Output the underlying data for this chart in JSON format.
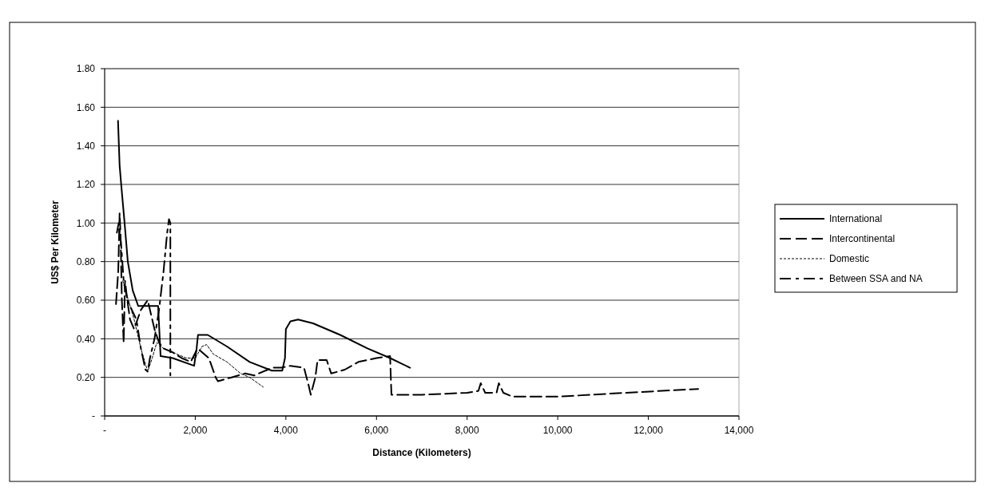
{
  "chart_data": {
    "type": "line",
    "xlabel": "Distance (Kilometers)",
    "ylabel": "US$ Per Kilometer",
    "xlim": [
      0,
      14000
    ],
    "xticks": [
      {
        "value": 0,
        "label": "-"
      },
      {
        "value": 2000,
        "label": "2,000"
      },
      {
        "value": 4000,
        "label": "4,000"
      },
      {
        "value": 6000,
        "label": "6,000"
      },
      {
        "value": 8000,
        "label": "8,000"
      },
      {
        "value": 10000,
        "label": "10,000"
      },
      {
        "value": 12000,
        "label": "12,000"
      },
      {
        "value": 14000,
        "label": "14,000"
      }
    ],
    "ylim": [
      0,
      1.8
    ],
    "yticks": [
      {
        "value": 0,
        "label": "-"
      },
      {
        "value": 0.2,
        "label": "0.20"
      },
      {
        "value": 0.4,
        "label": "0.40"
      },
      {
        "value": 0.6,
        "label": "0.60"
      },
      {
        "value": 0.8,
        "label": "0.80"
      },
      {
        "value": 1.0,
        "label": "1.00"
      },
      {
        "value": 1.2,
        "label": "1.20"
      },
      {
        "value": 1.4,
        "label": "1.40"
      },
      {
        "value": 1.6,
        "label": "1.60"
      },
      {
        "value": 1.8,
        "label": "1.80"
      }
    ],
    "grid": "y",
    "legend": "right",
    "series": [
      {
        "name": "International",
        "color": "#000000",
        "line_style": "solid",
        "x": [
          295,
          330,
          365,
          440,
          511,
          620,
          741,
          900,
          1180,
          1235,
          1500,
          1975,
          2030,
          2060,
          2275,
          2700,
          3200,
          3690,
          3920,
          3980,
          4000,
          4100,
          4270,
          4600,
          5200,
          5800,
          6300,
          6740
        ],
        "values": [
          1.53,
          1.3,
          1.2,
          1.0,
          0.8,
          0.65,
          0.57,
          0.57,
          0.57,
          0.31,
          0.3,
          0.26,
          0.35,
          0.42,
          0.42,
          0.36,
          0.28,
          0.235,
          0.235,
          0.3,
          0.45,
          0.49,
          0.5,
          0.48,
          0.42,
          0.35,
          0.3,
          0.25
        ]
      },
      {
        "name": "Intercontinental",
        "color": "#000000",
        "line_style": "dashed",
        "x": [
          250,
          300,
          330,
          350,
          380,
          420,
          450,
          500,
          560,
          650,
          800,
          950,
          1100,
          1200,
          1300,
          1500,
          1700,
          1900,
          2050,
          2300,
          2450,
          2500,
          2800,
          3100,
          3300,
          3700,
          3900,
          4100,
          4400,
          4500,
          4550,
          4650,
          4700,
          4900,
          5000,
          5300,
          5600,
          6000,
          6300,
          6330,
          7000,
          8000,
          8250,
          8300,
          8400,
          8650,
          8700,
          8800,
          9000,
          10000,
          11500,
          13100
        ],
        "values": [
          0.58,
          0.75,
          1.05,
          0.95,
          0.6,
          0.38,
          0.7,
          0.6,
          0.5,
          0.45,
          0.55,
          0.6,
          0.45,
          0.38,
          0.35,
          0.33,
          0.3,
          0.28,
          0.35,
          0.3,
          0.2,
          0.18,
          0.2,
          0.22,
          0.21,
          0.25,
          0.25,
          0.26,
          0.25,
          0.16,
          0.11,
          0.2,
          0.29,
          0.29,
          0.22,
          0.24,
          0.28,
          0.3,
          0.31,
          0.11,
          0.11,
          0.12,
          0.13,
          0.17,
          0.12,
          0.12,
          0.17,
          0.12,
          0.1,
          0.1,
          0.12,
          0.14
        ]
      },
      {
        "name": "Domestic",
        "color": "#000000",
        "line_style": "dotted",
        "x": [
          400,
          500,
          650,
          800,
          950,
          1050,
          1150,
          1300,
          1500,
          1800,
          2000,
          2150,
          2250,
          2400,
          2700,
          3000,
          3200,
          3500
        ],
        "values": [
          0.7,
          0.62,
          0.5,
          0.35,
          0.23,
          0.3,
          0.38,
          0.35,
          0.33,
          0.3,
          0.3,
          0.36,
          0.37,
          0.32,
          0.28,
          0.22,
          0.2,
          0.15
        ]
      },
      {
        "name": "Between SSA and NA",
        "color": "#000000",
        "line_style": "dashdot",
        "x": [
          270,
          310,
          360,
          420,
          500,
          600,
          700,
          800,
          900,
          950,
          1000,
          1100,
          1200,
          1300,
          1380,
          1420,
          1450,
          1450
        ],
        "values": [
          0.95,
          1.0,
          0.9,
          0.7,
          0.6,
          0.55,
          0.5,
          0.35,
          0.24,
          0.23,
          0.3,
          0.4,
          0.55,
          0.75,
          0.95,
          1.02,
          1.0,
          0.21
        ]
      }
    ]
  }
}
